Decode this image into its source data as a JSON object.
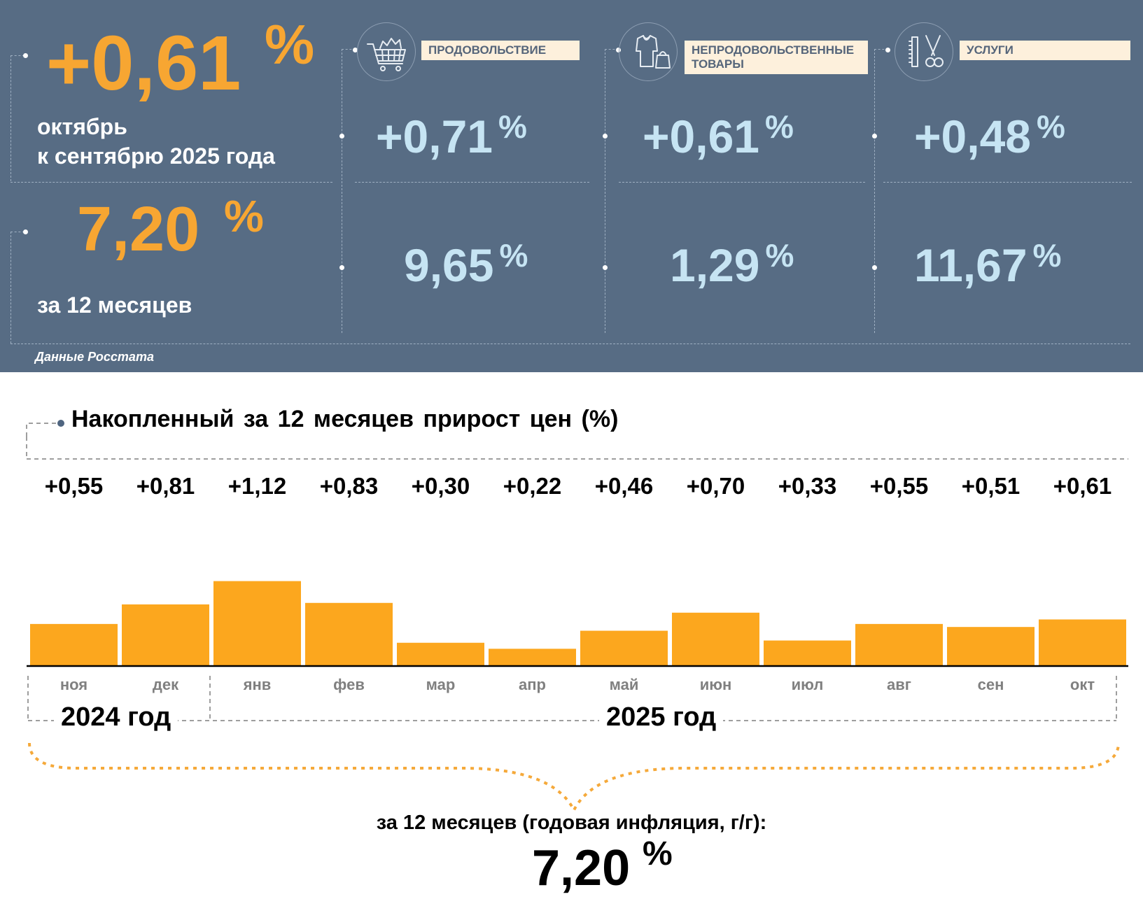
{
  "panel": {
    "month_value": "+0,61",
    "month_pct": "%",
    "month_caption_line1": "октябрь",
    "month_caption_line2": "к сентябрю 2025 года",
    "year_value": "7,20",
    "year_pct": "%",
    "year_caption": "за 12 месяцев",
    "source": "Данные Росстата",
    "categories": [
      {
        "label_line1": "ПРОДОВОЛЬСТВИЕ",
        "label_line2": "",
        "icon": "shopping-cart-icon",
        "month_value": "+0,71",
        "year_value": "9,65",
        "pct": "%"
      },
      {
        "label_line1": "НЕПРОДОВОЛЬСТВЕННЫЕ",
        "label_line2": "ТОВАРЫ",
        "icon": "clothing-bag-icon",
        "month_value": "+0,61",
        "year_value": "1,29",
        "pct": "%"
      },
      {
        "label_line1": "УСЛУГИ",
        "label_line2": "",
        "icon": "comb-scissors-icon",
        "month_value": "+0,48",
        "year_value": "11,67",
        "pct": "%"
      }
    ]
  },
  "colors": {
    "panel_bg": "#576c84",
    "accent_orange": "#f7a632",
    "value_blue": "#c6e4f3",
    "bar_orange": "#fca71e"
  },
  "chart_data": {
    "type": "bar",
    "title": "Накопленный за 12 месяцев прирост цен (%)",
    "categories": [
      "ноя",
      "дек",
      "янв",
      "фев",
      "мар",
      "апр",
      "май",
      "июн",
      "июл",
      "авг",
      "сен",
      "окт"
    ],
    "values": [
      0.55,
      0.81,
      1.12,
      0.83,
      0.3,
      0.22,
      0.46,
      0.7,
      0.33,
      0.55,
      0.51,
      0.61
    ],
    "value_labels": [
      "+0,55",
      "+0,81",
      "+1,12",
      "+0,83",
      "+0,30",
      "+0,22",
      "+0,46",
      "+0,70",
      "+0,33",
      "+0,55",
      "+0,51",
      "+0,61"
    ],
    "year_groups": [
      {
        "label": "2024 год",
        "months": [
          "ноя",
          "дек"
        ]
      },
      {
        "label": "2025 год",
        "months": [
          "янв",
          "фев",
          "мар",
          "апр",
          "май",
          "июн",
          "июл",
          "авг",
          "сен",
          "окт"
        ]
      }
    ],
    "summary_caption": "за 12 месяцев (годовая инфляция, г/г):",
    "summary_value": "7,20",
    "summary_pct": "%"
  }
}
